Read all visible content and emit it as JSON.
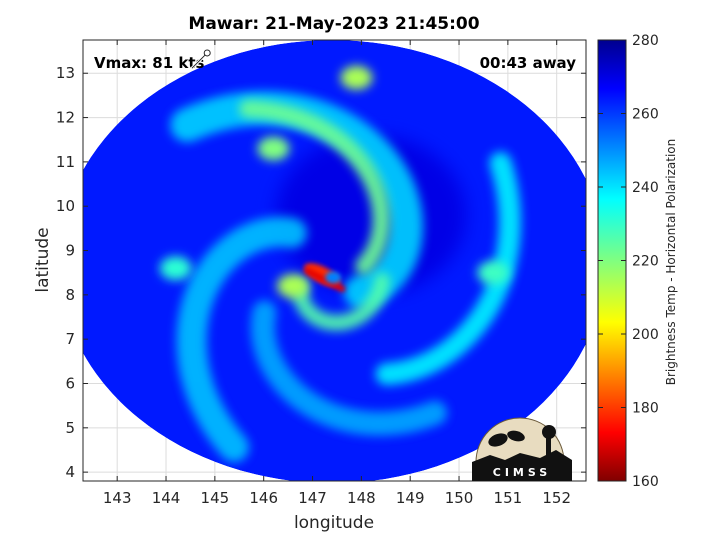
{
  "chart_data": {
    "type": "heatmap",
    "title": "Mawar: 21-May-2023 21:45:00",
    "xlabel": "longitude",
    "ylabel": "latitude",
    "xlim": [
      142.3,
      152.6
    ],
    "ylim": [
      3.8,
      13.75
    ],
    "x_ticks": [
      "143",
      "144",
      "145",
      "146",
      "147",
      "148",
      "149",
      "150",
      "151",
      "152"
    ],
    "y_ticks": [
      "4",
      "5",
      "6",
      "7",
      "8",
      "9",
      "10",
      "11",
      "12",
      "13"
    ],
    "grid": true,
    "annotations": {
      "vmax": "Vmax: 81 kts",
      "time_offset": "00:43 away"
    },
    "storm_center": {
      "lon": 147.3,
      "lat": 8.3
    },
    "storm_marker": {
      "lon": 144.7,
      "lat": 13.3
    },
    "swath": {
      "center_lon": 147.4,
      "center_lat": 8.75,
      "radius_lon": 5.6,
      "radius_lat": 5.0
    },
    "colorbar": {
      "label": "Brightness Temp - Horizontal Polarization",
      "range": [
        160,
        280
      ],
      "ticks": [
        "160",
        "180",
        "200",
        "220",
        "240",
        "260",
        "280"
      ],
      "colormap": "jet"
    },
    "features": [
      {
        "name": "eyewall-hot-spot",
        "lon": 147.2,
        "lat": 8.45,
        "value": 180
      },
      {
        "name": "inner-spiral-band",
        "lon": 146.6,
        "lat": 8.2,
        "value": 215
      },
      {
        "name": "north-rainband",
        "lon": 146.2,
        "lat": 11.3,
        "value": 220
      },
      {
        "name": "north-rainband-tip",
        "lon": 147.9,
        "lat": 12.9,
        "value": 215
      },
      {
        "name": "west-rainband",
        "lon": 144.2,
        "lat": 8.6,
        "value": 230
      },
      {
        "name": "east-rainband",
        "lon": 150.7,
        "lat": 8.5,
        "value": 228
      },
      {
        "name": "background-ocean",
        "value": 262
      },
      {
        "name": "central-dense-overcast",
        "lon": 148.2,
        "lat": 9.8,
        "value": 268
      }
    ]
  },
  "logo": {
    "text": "CIMSS"
  }
}
